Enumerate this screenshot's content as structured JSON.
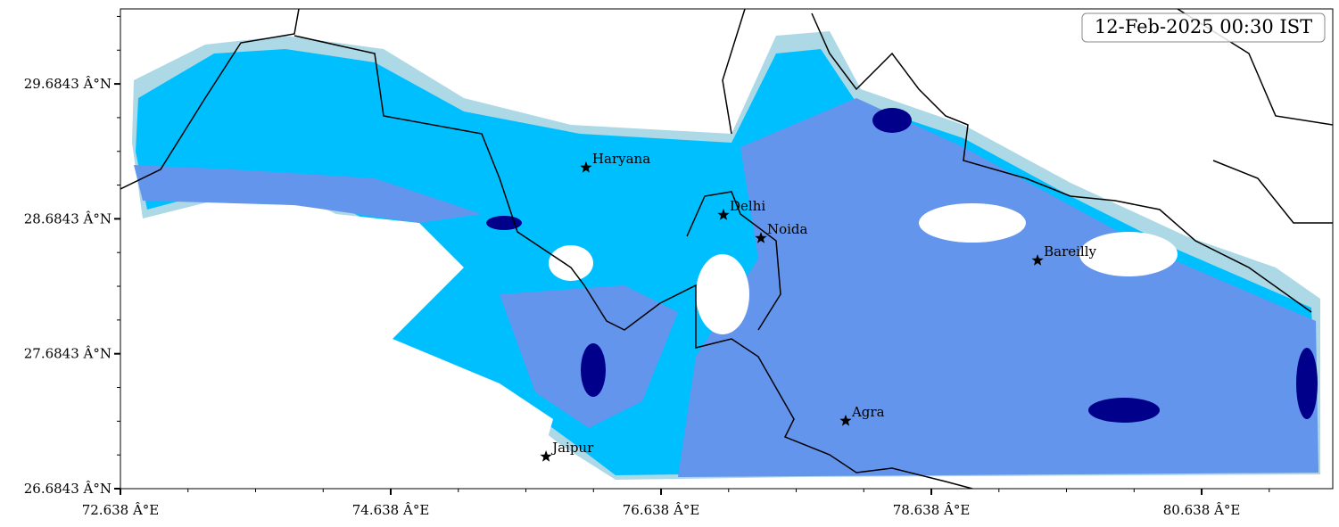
{
  "chart_data": {
    "type": "map",
    "annotation": "12-Feb-2025 00:30 IST",
    "xlim": [
      72.638,
      81.608
    ],
    "ylim": [
      26.6843,
      30.24
    ],
    "xticks": [
      {
        "value": 72.638,
        "label": "72.638 Â°E"
      },
      {
        "value": 74.638,
        "label": "74.638 Â°E"
      },
      {
        "value": 76.638,
        "label": "76.638 Â°E"
      },
      {
        "value": 78.638,
        "label": "78.638 Â°E"
      },
      {
        "value": 80.638,
        "label": "80.638 Â°E"
      }
    ],
    "yticks": [
      {
        "value": 26.6843,
        "label": "26.6843 Â°N"
      },
      {
        "value": 27.6843,
        "label": "27.6843 Â°N"
      },
      {
        "value": 28.6843,
        "label": "28.6843 Â°N"
      },
      {
        "value": 29.6843,
        "label": "29.6843 Â°N"
      }
    ],
    "points": [
      {
        "name": "Haryana",
        "x": 76.083,
        "y": 29.064
      },
      {
        "name": "Delhi",
        "x": 77.1,
        "y": 28.713
      },
      {
        "name": "Noida",
        "x": 77.377,
        "y": 28.541
      },
      {
        "name": "Bareilly",
        "x": 79.424,
        "y": 28.376
      },
      {
        "name": "Agra",
        "x": 78.004,
        "y": 27.187
      },
      {
        "name": "Jaipur",
        "x": 75.787,
        "y": 26.922
      }
    ]
  }
}
